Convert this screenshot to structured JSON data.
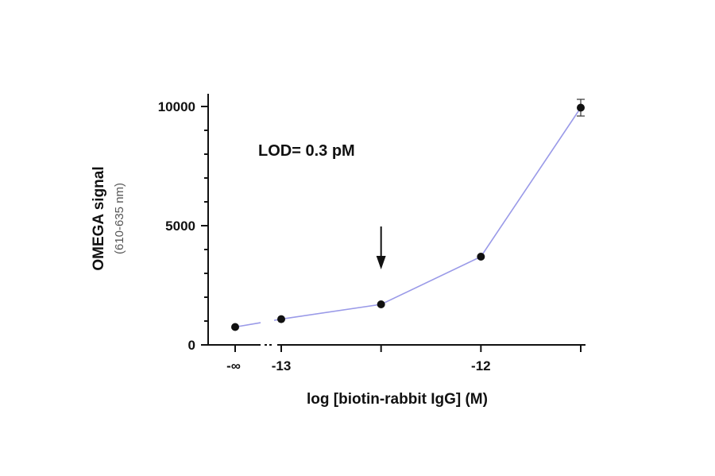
{
  "chart_data": {
    "type": "line",
    "title": "",
    "xlabel": "log [biotin-rabbit IgG] (M)",
    "ylabel": "OMEGA signal",
    "ylabel_sub": "(610-635 nm)",
    "ylim": [
      0,
      10000
    ],
    "yticks": [
      {
        "value": 0,
        "label": "0"
      },
      {
        "value": 5000,
        "label": "5000"
      },
      {
        "value": 10000,
        "label": "10000"
      }
    ],
    "x_axis": {
      "scale": "log10 concentration (M) with broken axis",
      "range": [
        -13.0,
        -11.5
      ],
      "zero_label": "-∞",
      "ticks": [
        {
          "value": -13,
          "label": "-13"
        },
        {
          "value": -12.5,
          "label": ""
        },
        {
          "value": -12,
          "label": "-12"
        },
        {
          "value": -11.5,
          "label": ""
        }
      ]
    },
    "series": [
      {
        "color": "#9a9ae8",
        "points": [
          {
            "x": "-∞",
            "y": 750
          },
          {
            "x": -13.0,
            "y": 1080
          },
          {
            "x": -12.5,
            "y": 1700
          },
          {
            "x": -12.0,
            "y": 3700
          },
          {
            "x": -11.5,
            "y": 9950,
            "err": 350
          }
        ]
      }
    ],
    "annotations": [
      {
        "text": "LOD= 0.3 pM"
      }
    ],
    "lod_arrow_x": -12.5,
    "grid": false,
    "legend": "none"
  }
}
